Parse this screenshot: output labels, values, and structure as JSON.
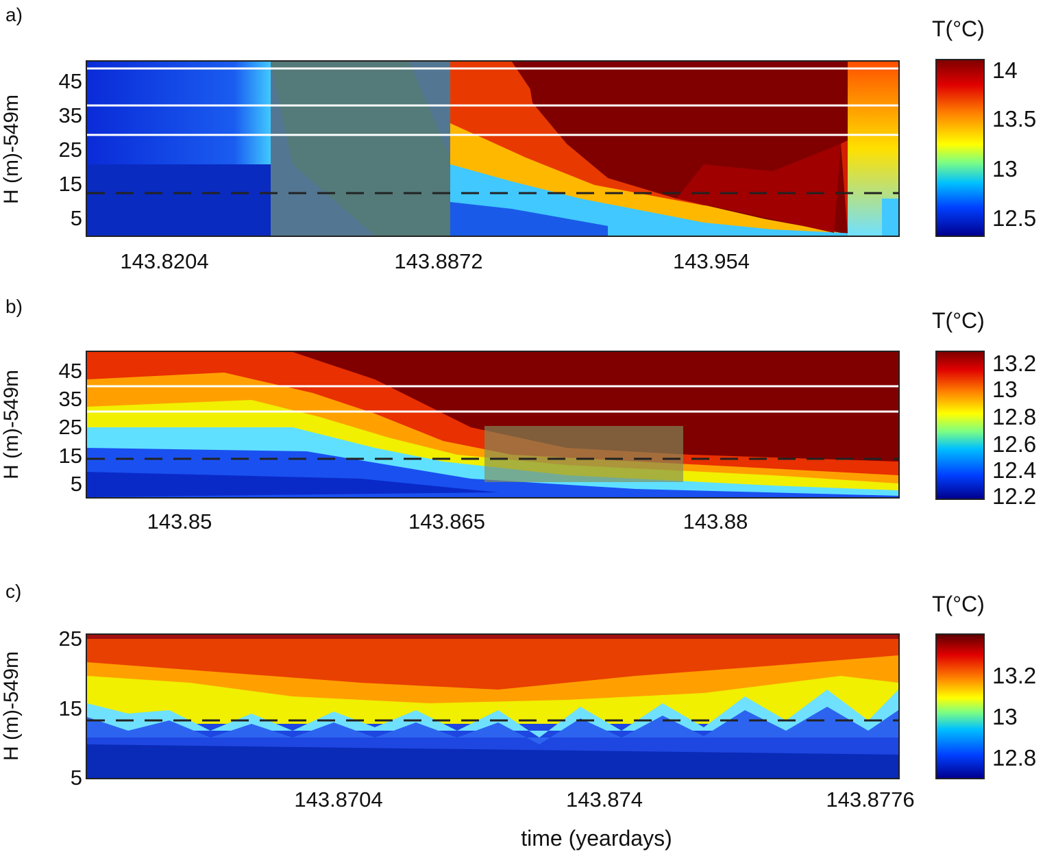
{
  "panels": [
    {
      "label": "a)",
      "ylabel": "H (m)-549m",
      "yticks": [
        "45",
        "35",
        "25",
        "15",
        "5"
      ],
      "xticks": [
        "143.8204",
        "143.8872",
        "143.954"
      ],
      "colorbar": {
        "title": "T(°C)",
        "ticks": [
          "14",
          "13.5",
          "13",
          "12.5"
        ]
      }
    },
    {
      "label": "b)",
      "ylabel": "H (m)-549m",
      "yticks": [
        "45",
        "35",
        "25",
        "15",
        "5"
      ],
      "xticks": [
        "143.85",
        "143.865",
        "143.88"
      ],
      "colorbar": {
        "title": "T(°C)",
        "ticks": [
          "13.2",
          "13",
          "12.8",
          "12.6",
          "12.4",
          "12.2"
        ]
      }
    },
    {
      "label": "c)",
      "ylabel": "H (m)-549m",
      "yticks": [
        "25",
        "15",
        "5"
      ],
      "xticks": [
        "143.8704",
        "143.874",
        "143.8776"
      ],
      "colorbar": {
        "title": "T(°C)",
        "ticks": [
          "13.2",
          "13",
          "12.8"
        ]
      }
    }
  ],
  "xlabel": "time (yeardays)",
  "colors": {
    "colormap": [
      "#00008f",
      "#0040ff",
      "#00c0ff",
      "#80ff80",
      "#ffff00",
      "#ff8000",
      "#e00000",
      "#800000"
    ],
    "highlight_box": "#7f8f5a",
    "reference_line": "#222222",
    "guide_line": "#ffffff"
  },
  "chart_data": [
    {
      "type": "heatmap",
      "panel": "a",
      "title": "",
      "xlabel": "time (yeardays)",
      "ylabel": "H (m)-549m",
      "xlim": [
        143.79,
        143.99
      ],
      "ylim": [
        0,
        51
      ],
      "xticks": [
        143.8204,
        143.8872,
        143.954
      ],
      "yticks": [
        5,
        15,
        25,
        35,
        45
      ],
      "colorbar_range": [
        12.4,
        14.1
      ],
      "colorbar_ticks": [
        12.5,
        13,
        13.5,
        14
      ],
      "dashed_line_depth": 13,
      "white_lines_depth": [
        30,
        38,
        50
      ],
      "highlight_box_x": [
        143.8335,
        143.8785
      ]
    },
    {
      "type": "heatmap",
      "panel": "b",
      "title": "",
      "xlabel": "time (yeardays)",
      "ylabel": "H (m)-549m",
      "xlim": [
        143.8432,
        143.8905
      ],
      "ylim": [
        0,
        51
      ],
      "xticks": [
        143.85,
        143.865,
        143.88
      ],
      "yticks": [
        5,
        15,
        25,
        35,
        45
      ],
      "colorbar_range": [
        12.15,
        13.28
      ],
      "colorbar_ticks": [
        12.2,
        12.4,
        12.6,
        12.8,
        13,
        13.2
      ],
      "dashed_line_depth": 13,
      "white_lines_depth": [
        30,
        38,
        50
      ],
      "highlight_box": {
        "x": [
          143.8662,
          143.8776
        ],
        "y": [
          5,
          25
        ]
      }
    },
    {
      "type": "heatmap",
      "panel": "c",
      "title": "",
      "xlabel": "time (yeardays)",
      "ylabel": "H (m)-549m",
      "xlim": [
        143.8672,
        143.8776
      ],
      "ylim": [
        4,
        25
      ],
      "xticks": [
        143.8704,
        143.874,
        143.8776
      ],
      "yticks": [
        5,
        15,
        25
      ],
      "colorbar_range": [
        12.68,
        13.35
      ],
      "colorbar_ticks": [
        12.8,
        13,
        13.2
      ],
      "dashed_line_depth": 13
    }
  ]
}
